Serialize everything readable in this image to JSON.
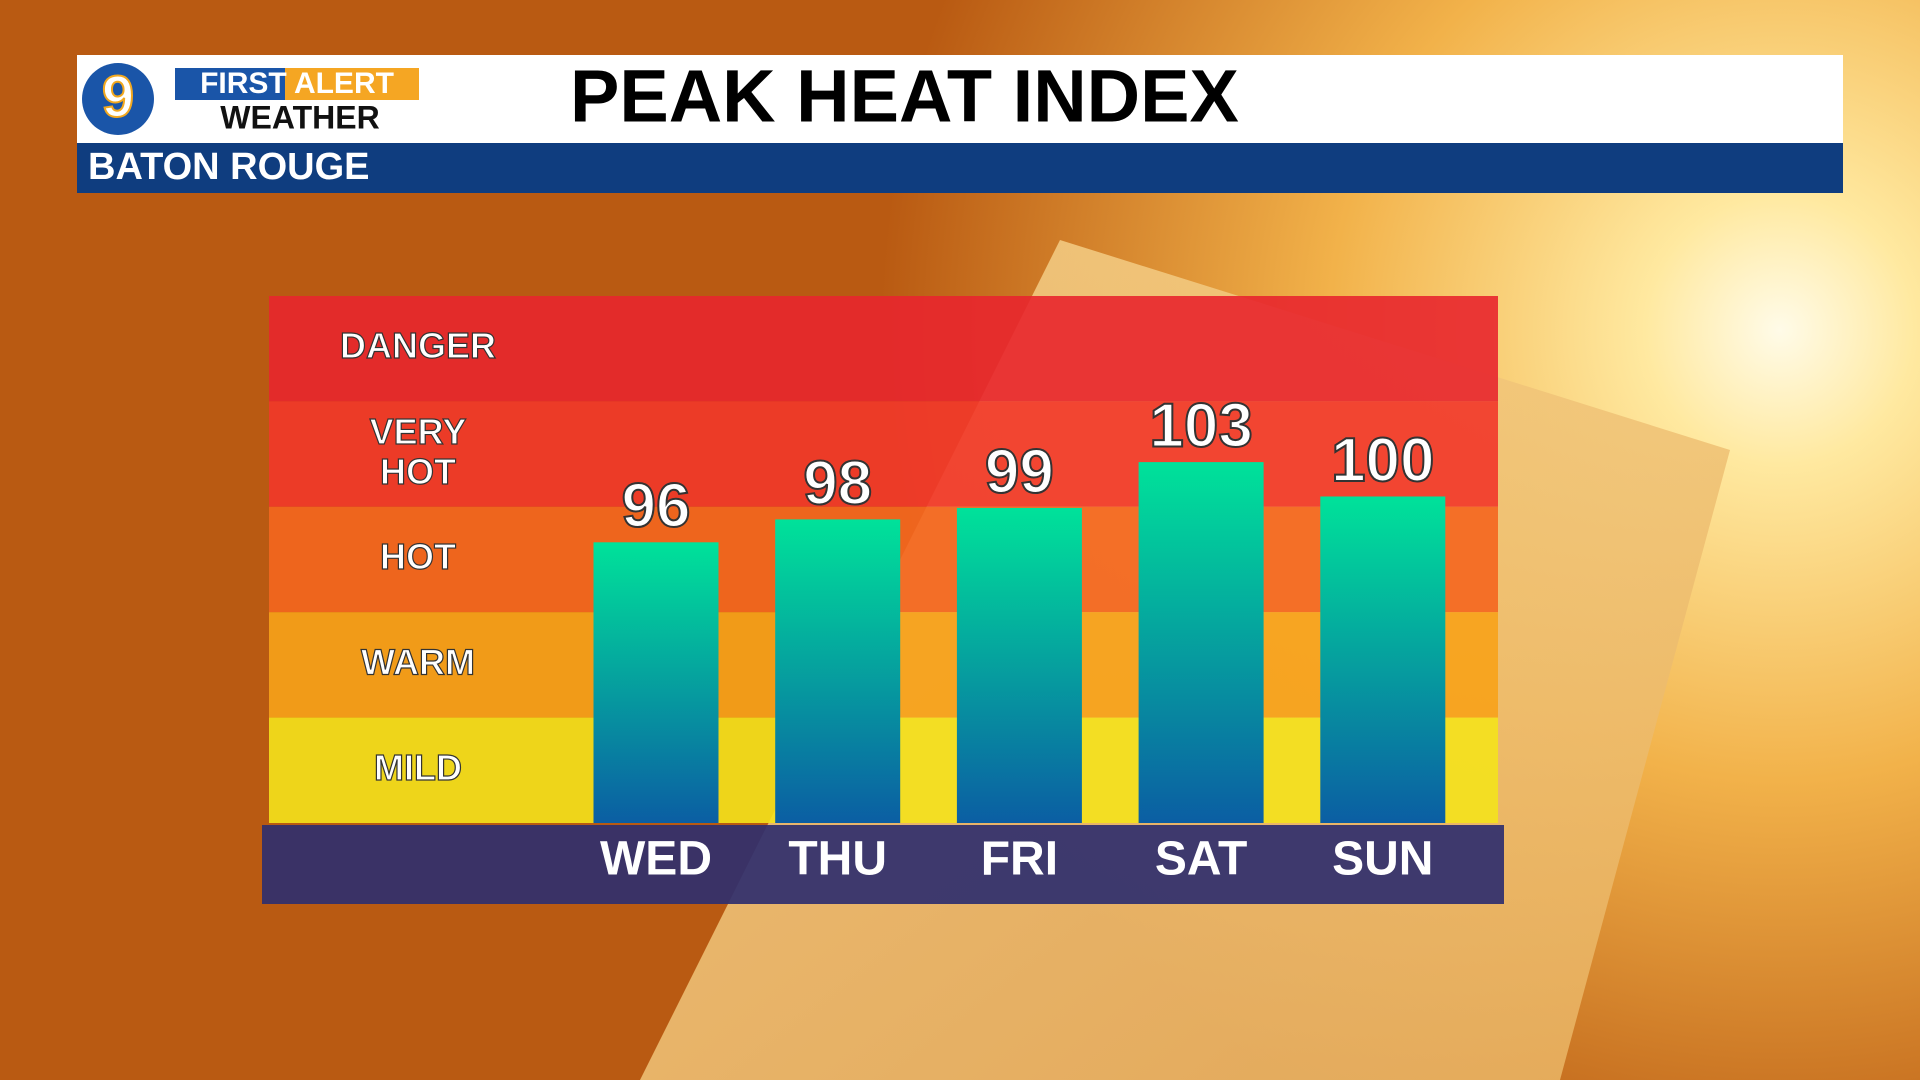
{
  "header": {
    "logo_number": "9",
    "logo_line1": "FIRST ALERT",
    "logo_line2": "WEATHER",
    "location": "BATON ROUGE"
  },
  "chart_data": {
    "type": "bar",
    "title": "PEAK HEAT INDEX",
    "categories": [
      "WED",
      "THU",
      "FRI",
      "SAT",
      "SUN"
    ],
    "values": [
      96,
      98,
      99,
      103,
      100
    ],
    "ylim": [
      71.5,
      117.5
    ],
    "color_top": "#00e29a",
    "color_bottom": "#0b5ea3",
    "bands": [
      {
        "name": "DANGER",
        "color": "#e8262e"
      },
      {
        "name": "VERY HOT",
        "color": "#f2372a"
      },
      {
        "name": "HOT",
        "color": "#f4661f"
      },
      {
        "name": "WARM",
        "color": "#f7a21a"
      },
      {
        "name": "MILD",
        "color": "#f4e21c"
      }
    ]
  }
}
